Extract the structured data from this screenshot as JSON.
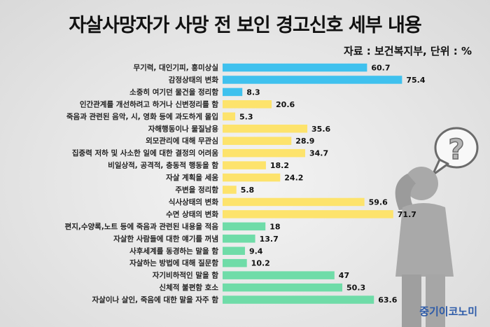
{
  "title": "자살사망자가 사망 전 보인 경고신호 세부 내용",
  "source": "자료 : 보건복지부, 단위 : %",
  "brand": "중기이코노미",
  "figure_icon": "person-question-mark-icon",
  "colors": {
    "blue": "#3fc1ee",
    "yellow": "#fde36c",
    "green": "#6fdca8"
  },
  "chart_data": {
    "type": "bar",
    "orientation": "horizontal",
    "title": "자살사망자가 사망 전 보인 경고신호 세부 내용",
    "unit": "%",
    "xlim": [
      0,
      80
    ],
    "grid": false,
    "categories": [
      "무기력, 대인기피, 흥미상실",
      "감정상태의 변화",
      "소중히 여기던 물건을 정리함",
      "인간관계를 개선하려고 하거나 신변정리를 함",
      "죽음과 관련된 음악, 시, 영화 등에 과도하게 몰입",
      "자해행동이나 물질남용",
      "외모관리에 대해 무관심",
      "집중력 저하 및 사소한 일에 대한 결정의 어려움",
      "비일상적, 공격적, 충동적 행동을 함",
      "자살 계획을 세움",
      "주변을 정리함",
      "식사상태의 변화",
      "수면 상태의 변화",
      "편지,수양록,노트 등에 죽음과 관련된 내용을 적음",
      "자살한 사람들에 대한 얘기를 꺼냄",
      "사후세계를 동경하는 말을 함",
      "자살하는 방법에 대해 질문함",
      "자기비하적인 말을 함",
      "신체적 불편함 호소",
      "자살이나 살인, 죽음에 대한 말을 자주 함"
    ],
    "values": [
      60.7,
      75.4,
      8.3,
      20.6,
      5.3,
      35.6,
      28.9,
      34.7,
      18.2,
      24.2,
      5.8,
      59.6,
      71.7,
      18,
      13.7,
      9.4,
      10.2,
      47,
      50.3,
      63.6
    ],
    "value_labels": [
      "60.7",
      "75.4",
      "8.3",
      "20.6",
      "5.3",
      "35.6",
      "28.9",
      "34.7",
      "18.2",
      "24.2",
      "5.8",
      "59.6",
      "71.7",
      "18",
      "13.7",
      "9.4",
      "10.2",
      "47",
      "50.3",
      "63.6"
    ],
    "bar_colors": [
      "blue",
      "blue",
      "blue",
      "yellow",
      "yellow",
      "yellow",
      "yellow",
      "yellow",
      "yellow",
      "yellow",
      "yellow",
      "yellow",
      "yellow",
      "green",
      "green",
      "green",
      "green",
      "green",
      "green",
      "green"
    ]
  }
}
